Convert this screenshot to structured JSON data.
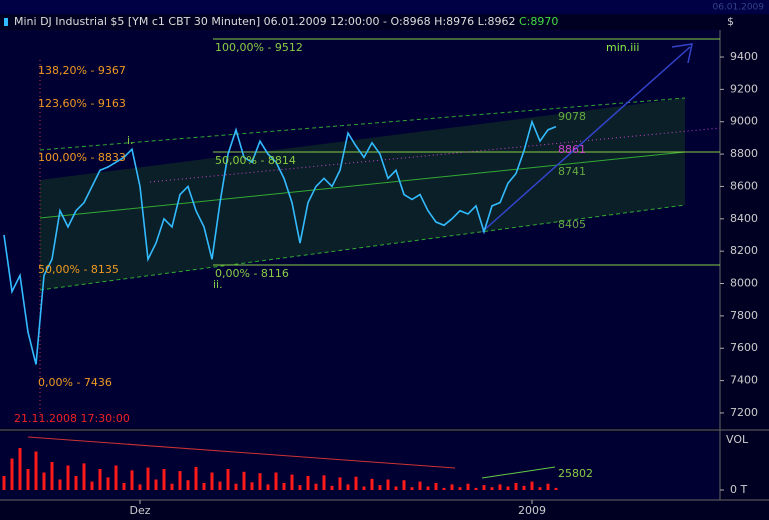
{
  "header": {
    "title": "Mini DJ Industrial $5 [YM c1 CBT  30 Minuten] 06.01.2009 12:00:00 - O:8968 H:8976 L:8962",
    "close": "C:8970",
    "corner_date": "06.01.2009"
  },
  "chart_data": [
    {
      "type": "line",
      "axis_unit": "$",
      "categories": [
        null,
        null,
        null,
        null,
        null,
        null,
        null,
        null,
        null,
        null,
        null,
        null,
        null,
        null,
        null,
        null,
        null,
        "Dez",
        null,
        null,
        null,
        null,
        null,
        null,
        null,
        null,
        null,
        null,
        null,
        null,
        null,
        null,
        null,
        null,
        null,
        null,
        null,
        null,
        null,
        null,
        null,
        null,
        null,
        null,
        null,
        null,
        null,
        null,
        null,
        null,
        null,
        null,
        null,
        null,
        null,
        null,
        null,
        null,
        null,
        null,
        null,
        null,
        null,
        null,
        null,
        null,
        "2009",
        null,
        null,
        null
      ],
      "series": [
        {
          "name": "Mini DJ Industrial $5",
          "color": "#33bbff",
          "values": [
            8300,
            7950,
            8050,
            7700,
            7500,
            8050,
            8150,
            8450,
            8350,
            8450,
            8500,
            8600,
            8700,
            8720,
            8750,
            8780,
            8830,
            8600,
            8150,
            8250,
            8400,
            8350,
            8550,
            8600,
            8450,
            8350,
            8150,
            8500,
            8800,
            8950,
            8780,
            8750,
            8880,
            8800,
            8750,
            8650,
            8500,
            8250,
            8500,
            8600,
            8650,
            8600,
            8700,
            8930,
            8850,
            8780,
            8870,
            8800,
            8650,
            8700,
            8550,
            8520,
            8550,
            8450,
            8380,
            8360,
            8400,
            8450,
            8430,
            8480,
            8320,
            8480,
            8500,
            8620,
            8680,
            8820,
            9000,
            8880,
            8950,
            8970
          ]
        }
      ],
      "ylim": [
        7107,
        9567
      ],
      "yticks": [
        7200,
        7400,
        7600,
        7800,
        8000,
        8200,
        8400,
        8600,
        8800,
        9000,
        9200,
        9400
      ],
      "annotations": [
        "138,20% - 9367",
        "123,60% - 9163",
        "100,00% - 8833",
        "50,00% - 8135",
        "0,00% - 7436",
        "100,00% - 9512",
        "50,00% - 8814",
        "0,00% - 8116",
        "i.",
        "ii.",
        "min.iii",
        "9078",
        "8861",
        "8741",
        "8405",
        "21.11.2008 17:30:00"
      ]
    },
    {
      "type": "bar",
      "axis_label": "VOL",
      "color": "#ff1a1a",
      "values": [
        20000,
        45000,
        60000,
        30000,
        55000,
        25000,
        40000,
        15000,
        35000,
        20000,
        38000,
        12000,
        30000,
        18000,
        35000,
        10000,
        28000,
        8000,
        32000,
        15000,
        30000,
        9000,
        27000,
        14000,
        33000,
        10000,
        25000,
        12000,
        30000,
        9000,
        26000,
        11000,
        24000,
        8000,
        25000,
        10000,
        22000,
        7000,
        20000,
        9000,
        21000,
        6000,
        18000,
        8000,
        19000,
        5000,
        16000,
        7000,
        15000,
        5000,
        14000,
        4000,
        12000,
        5000,
        10000,
        3000,
        8000,
        4000,
        9000,
        3000,
        7000,
        4000,
        8000,
        5000,
        10000,
        6000,
        12000,
        4000,
        9000,
        3000
      ],
      "ylim": [
        0,
        80000
      ],
      "yticks": [
        {
          "value": 0,
          "label": "0 T"
        }
      ],
      "annotations": [
        "25802"
      ]
    }
  ]
}
